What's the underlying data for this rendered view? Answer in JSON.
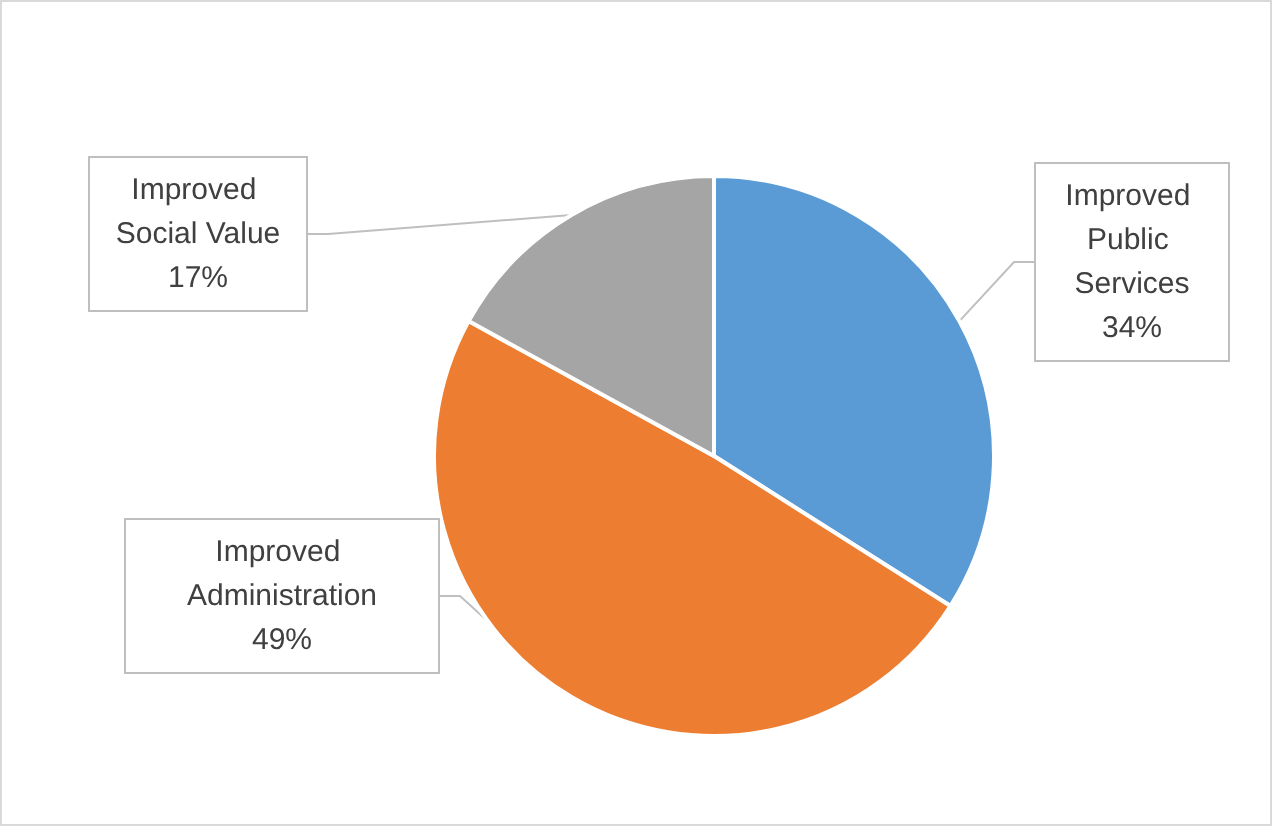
{
  "chart_data": {
    "type": "pie",
    "categories": [
      "Improved Public Services",
      "Improved Administration",
      "Improved Social Value"
    ],
    "values": [
      34,
      49,
      17
    ],
    "value_labels": [
      "34%",
      "49%",
      "17%"
    ],
    "colors": [
      "#5b9bd5",
      "#ed7d31",
      "#a5a5a5"
    ],
    "legend": false
  }
}
